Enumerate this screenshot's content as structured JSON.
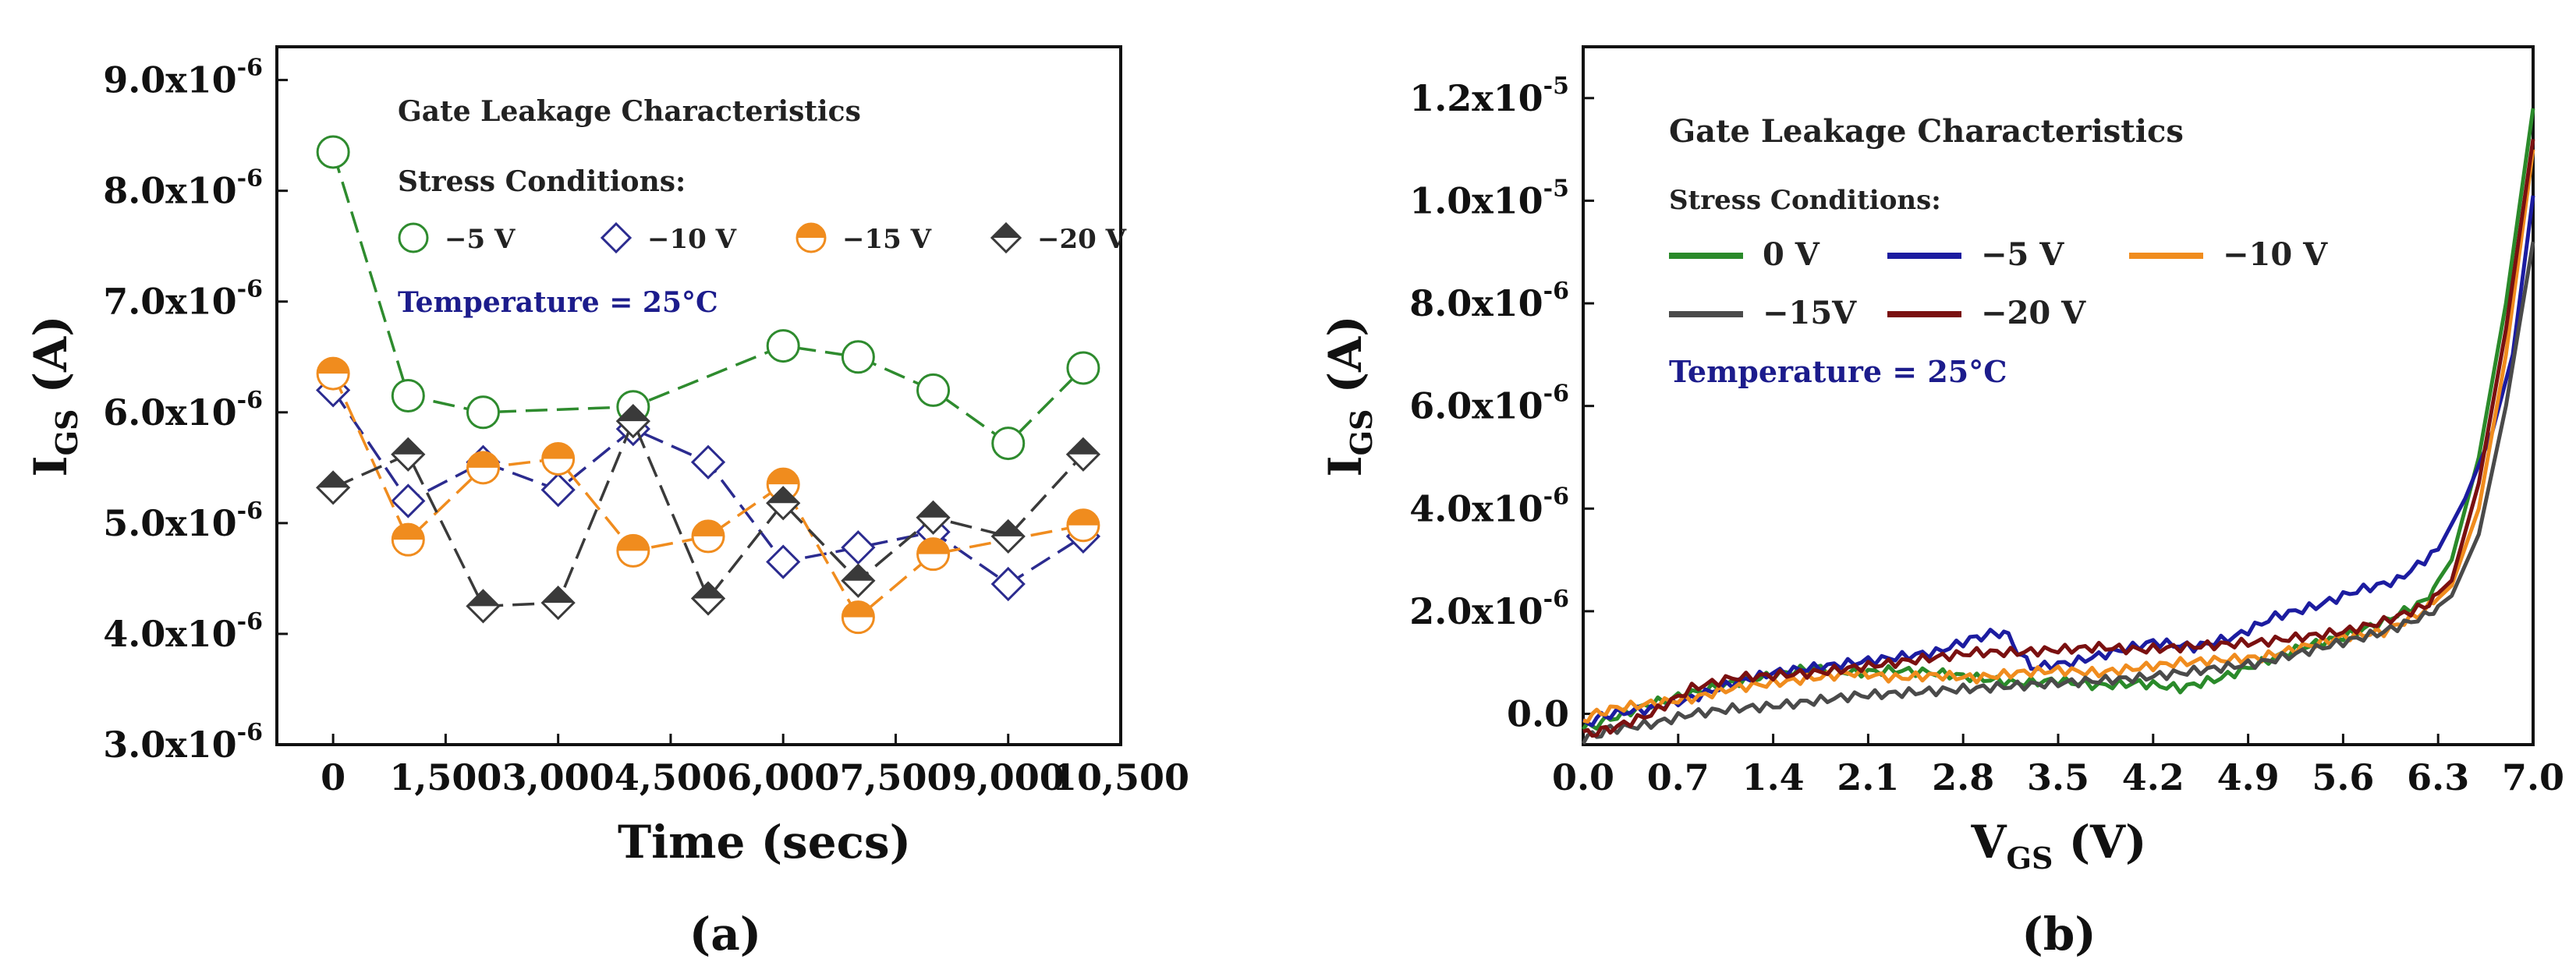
{
  "chart_data": [
    {
      "type": "line",
      "panel": "(a)",
      "title": "Gate Leakage Characteristics",
      "legend_title": "Stress Conditions:",
      "annotation": "Temperature = 25°C",
      "xlabel": "Time (secs)",
      "ylabel_main": "I",
      "ylabel_sub": "GS",
      "ylabel_unit": " (A)",
      "xlim": [
        -750,
        10500
      ],
      "ylim": [
        3e-06,
        9.3e-06
      ],
      "x_ticks": [
        0,
        1500,
        3000,
        4500,
        6000,
        7500,
        9000,
        10500
      ],
      "x_tick_labels": [
        "0",
        "1,500",
        "3,000",
        "4,500",
        "6,000",
        "7,500",
        "9,000",
        "10,500"
      ],
      "y_ticks": [
        3e-06,
        4e-06,
        5e-06,
        6e-06,
        7e-06,
        8e-06,
        9e-06
      ],
      "y_tick_labels": [
        "3.0x10",
        "4.0x10",
        "5.0x10",
        "6.0x10",
        "7.0x10",
        "8.0x10",
        "9.0x10"
      ],
      "y_tick_exp": "-6",
      "series": [
        {
          "name": "−5 V",
          "marker": "circle",
          "color": "#2e8b2e",
          "x": [
            0,
            1000,
            2000,
            4000,
            6000,
            7000,
            8000,
            9000,
            10000
          ],
          "values": [
            8.35e-06,
            6.15e-06,
            6e-06,
            6.05e-06,
            6.6e-06,
            6.5e-06,
            6.2e-06,
            5.72e-06,
            6.4e-06
          ]
        },
        {
          "name": "−10 V",
          "marker": "diamond",
          "color": "#2b2b8f",
          "x": [
            0,
            1000,
            2000,
            3000,
            4000,
            5000,
            6000,
            7000,
            8000,
            9000,
            10000
          ],
          "values": [
            6.2e-06,
            5.2e-06,
            5.55e-06,
            5.3e-06,
            5.85e-06,
            5.55e-06,
            4.65e-06,
            4.78e-06,
            4.92e-06,
            4.45e-06,
            4.88e-06
          ]
        },
        {
          "name": "−15 V",
          "marker": "half-circle",
          "color": "#f08c1e",
          "x": [
            0,
            1000,
            2000,
            3000,
            4000,
            5000,
            6000,
            7000,
            8000,
            10000
          ],
          "values": [
            6.35e-06,
            4.85e-06,
            5.5e-06,
            5.58e-06,
            4.75e-06,
            4.88e-06,
            5.35e-06,
            4.15e-06,
            4.72e-06,
            4.98e-06
          ]
        },
        {
          "name": "−20 V",
          "marker": "half-diamond",
          "color": "#3a3a3a",
          "x": [
            0,
            1000,
            2000,
            3000,
            4000,
            5000,
            6000,
            7000,
            8000,
            9000,
            10000
          ],
          "values": [
            5.32e-06,
            5.62e-06,
            4.25e-06,
            4.28e-06,
            5.92e-06,
            4.32e-06,
            5.18e-06,
            4.48e-06,
            5.05e-06,
            4.88e-06,
            5.62e-06
          ]
        }
      ]
    },
    {
      "type": "line",
      "panel": "(b)",
      "title": "Gate Leakage Characteristics",
      "legend_title": "Stress Conditions:",
      "annotation": "Temperature = 25°C",
      "xlabel_main": "V",
      "xlabel_sub": "GS",
      "xlabel_unit": " (V)",
      "ylabel_main": "I",
      "ylabel_sub": "GS",
      "ylabel_unit": " (A)",
      "xlim": [
        0.0,
        7.0
      ],
      "ylim": [
        -6e-07,
        1.3e-05
      ],
      "x_ticks": [
        0.0,
        0.7,
        1.4,
        2.1,
        2.8,
        3.5,
        4.2,
        4.9,
        5.6,
        6.3,
        7.0
      ],
      "x_tick_labels": [
        "0.0",
        "0.7",
        "1.4",
        "2.1",
        "2.8",
        "3.5",
        "4.2",
        "4.9",
        "5.6",
        "6.3",
        "7.0"
      ],
      "y_ticks": [
        0.0,
        2e-06,
        4e-06,
        6e-06,
        8e-06,
        1e-05,
        1.2e-05
      ],
      "y_tick_labels": [
        "0.0",
        "2.0x10",
        "4.0x10",
        "6.0x10",
        "8.0x10",
        "1.0x10",
        "1.2x10"
      ],
      "y_tick_exps": [
        "",
        "-6",
        "-6",
        "-6",
        "-6",
        "-5",
        "-5"
      ],
      "series": [
        {
          "name": "0 V",
          "color": "#2a8a2a",
          "x": [
            0,
            0.2,
            0.5,
            0.8,
            1.1,
            1.4,
            1.7,
            2.0,
            2.3,
            2.6,
            2.9,
            3.2,
            3.5,
            3.8,
            4.1,
            4.4,
            4.7,
            5.0,
            5.3,
            5.6,
            5.9,
            6.2,
            6.4,
            6.6,
            6.8,
            7.0
          ],
          "values": [
            -3e-07,
            -1e-07,
            2e-07,
            4e-07,
            6e-07,
            7.5e-07,
            9e-07,
            8e-07,
            8.5e-07,
            8e-07,
            7e-07,
            6e-07,
            6.5e-07,
            5.5e-07,
            6e-07,
            5e-07,
            7e-07,
            1e-06,
            1.3e-06,
            1.5e-06,
            1.8e-06,
            2.2e-06,
            3e-06,
            5e-06,
            8e-06,
            1.18e-05
          ]
        },
        {
          "name": "−5 V",
          "color": "#1c1ca0",
          "x": [
            0,
            0.2,
            0.5,
            0.8,
            1.1,
            1.4,
            1.7,
            2.0,
            2.3,
            2.6,
            2.9,
            3.1,
            3.3,
            3.6,
            3.9,
            4.2,
            4.5,
            4.8,
            5.1,
            5.4,
            5.7,
            6.0,
            6.3,
            6.5,
            6.7,
            6.85,
            7.0
          ],
          "values": [
            -2e-07,
            0.0,
            1e-07,
            3e-07,
            6e-07,
            8e-07,
            9e-07,
            1e-06,
            1.1e-06,
            1.2e-06,
            1.5e-06,
            1.6e-06,
            9e-07,
            1e-06,
            1.2e-06,
            1.4e-06,
            1.3e-06,
            1.5e-06,
            1.9e-06,
            2.1e-06,
            2.4e-06,
            2.6e-06,
            3.2e-06,
            4.2e-06,
            5.5e-06,
            7e-06,
            1.01e-05
          ]
        },
        {
          "name": "−10 V",
          "color": "#f08c1e",
          "x": [
            0,
            0.2,
            0.5,
            0.8,
            1.1,
            1.4,
            1.7,
            2.0,
            2.3,
            2.6,
            2.9,
            3.2,
            3.5,
            3.8,
            4.1,
            4.4,
            4.7,
            5.0,
            5.3,
            5.6,
            5.9,
            6.2,
            6.4,
            6.6,
            6.8,
            7.0
          ],
          "values": [
            -1e-07,
            1e-07,
            2e-07,
            3e-07,
            5e-07,
            6e-07,
            7e-07,
            8e-07,
            7e-07,
            7.5e-07,
            7e-07,
            8e-07,
            8.5e-07,
            8e-07,
            9e-07,
            1e-06,
            1.05e-06,
            1.1e-06,
            1.3e-06,
            1.5e-06,
            1.6e-06,
            2e-06,
            2.5e-06,
            4e-06,
            7e-06,
            1.1e-05
          ]
        },
        {
          "name": "−15V",
          "color": "#4a4a4a",
          "x": [
            0,
            0.2,
            0.5,
            0.8,
            1.1,
            1.4,
            1.7,
            2.0,
            2.3,
            2.6,
            2.9,
            3.2,
            3.5,
            3.8,
            4.1,
            4.4,
            4.7,
            5.0,
            5.3,
            5.6,
            5.9,
            6.2,
            6.4,
            6.6,
            6.8,
            7.0
          ],
          "values": [
            -5e-07,
            -3e-07,
            -2e-07,
            0.0,
            1e-07,
            1.5e-07,
            2.5e-07,
            3.5e-07,
            4e-07,
            4.5e-07,
            5e-07,
            5.5e-07,
            6e-07,
            6.5e-07,
            7e-07,
            8e-07,
            9e-07,
            1e-06,
            1.2e-06,
            1.4e-06,
            1.6e-06,
            1.9e-06,
            2.3e-06,
            3.5e-06,
            6e-06,
            9.2e-06
          ]
        },
        {
          "name": "−20 V",
          "color": "#7a1010",
          "x": [
            0,
            0.2,
            0.5,
            0.8,
            1.1,
            1.4,
            1.7,
            2.0,
            2.3,
            2.6,
            2.9,
            3.2,
            3.5,
            3.8,
            4.1,
            4.4,
            4.7,
            5.0,
            5.3,
            5.6,
            5.9,
            6.2,
            6.4,
            6.6,
            6.8,
            7.0
          ],
          "values": [
            -4e-07,
            -3e-07,
            0.0,
            5e-07,
            7e-07,
            7.5e-07,
            8e-07,
            9e-07,
            1e-06,
            1.1e-06,
            1.2e-06,
            1.2e-06,
            1.25e-06,
            1.3e-06,
            1.25e-06,
            1.3e-06,
            1.35e-06,
            1.4e-06,
            1.5e-06,
            1.6e-06,
            1.8e-06,
            2.1e-06,
            2.6e-06,
            4.5e-06,
            7.5e-06,
            1.12e-05
          ]
        }
      ]
    }
  ]
}
